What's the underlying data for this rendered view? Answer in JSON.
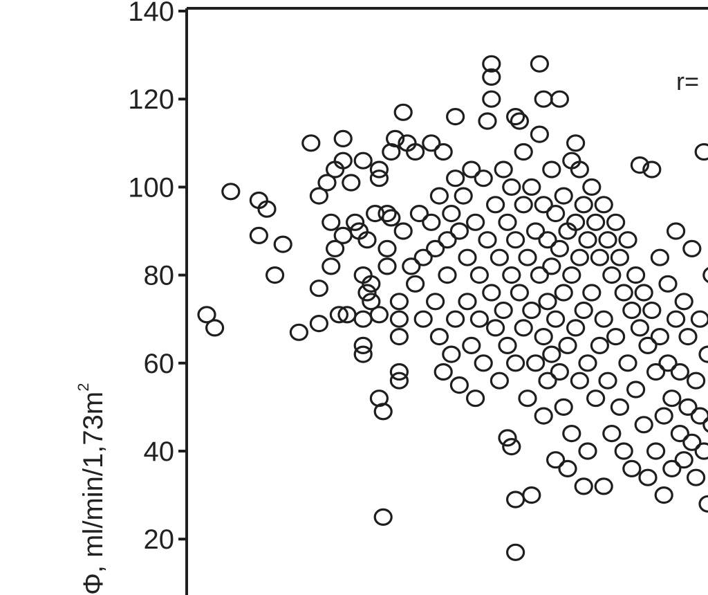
{
  "chart_data": {
    "type": "scatter",
    "title": "",
    "xlabel": "",
    "ylabel": "Φ, ml/min/1,73m",
    "ylabel_superscript": "2",
    "ylim": [
      0,
      140
    ],
    "yticks": [
      "140",
      "120",
      "100",
      "80",
      "60",
      "40",
      "20"
    ],
    "grid": false,
    "annotation": "r=",
    "marker": "open-circle",
    "marker_color": "#1e1e1e",
    "series": [
      {
        "points": [
          [
            0.05,
            71
          ],
          [
            0.07,
            68
          ],
          [
            0.11,
            99
          ],
          [
            0.18,
            97
          ],
          [
            0.2,
            95
          ],
          [
            0.18,
            89
          ],
          [
            0.24,
            87
          ],
          [
            0.22,
            80
          ],
          [
            0.28,
            67
          ],
          [
            0.31,
            110
          ],
          [
            0.33,
            98
          ],
          [
            0.33,
            77
          ],
          [
            0.33,
            69
          ],
          [
            0.35,
            101
          ],
          [
            0.36,
            92
          ],
          [
            0.36,
            82
          ],
          [
            0.37,
            86
          ],
          [
            0.37,
            104
          ],
          [
            0.38,
            71
          ],
          [
            0.39,
            111
          ],
          [
            0.39,
            106
          ],
          [
            0.39,
            89
          ],
          [
            0.4,
            71
          ],
          [
            0.41,
            101
          ],
          [
            0.42,
            92
          ],
          [
            0.43,
            90
          ],
          [
            0.44,
            106
          ],
          [
            0.44,
            80
          ],
          [
            0.44,
            70
          ],
          [
            0.44,
            64
          ],
          [
            0.44,
            62
          ],
          [
            0.45,
            88
          ],
          [
            0.45,
            76
          ],
          [
            0.46,
            78
          ],
          [
            0.46,
            74
          ],
          [
            0.47,
            94
          ],
          [
            0.48,
            104
          ],
          [
            0.48,
            102
          ],
          [
            0.48,
            71
          ],
          [
            0.48,
            52
          ],
          [
            0.49,
            49
          ],
          [
            0.49,
            25
          ],
          [
            0.5,
            94
          ],
          [
            0.5,
            86
          ],
          [
            0.5,
            82
          ],
          [
            0.51,
            108
          ],
          [
            0.51,
            93
          ],
          [
            0.52,
            111
          ],
          [
            0.53,
            74
          ],
          [
            0.53,
            70
          ],
          [
            0.53,
            66
          ],
          [
            0.53,
            58
          ],
          [
            0.53,
            56
          ],
          [
            0.54,
            117
          ],
          [
            0.54,
            90
          ],
          [
            0.55,
            110
          ],
          [
            0.56,
            82
          ],
          [
            0.57,
            108
          ],
          [
            0.57,
            78
          ],
          [
            0.58,
            94
          ],
          [
            0.59,
            84
          ],
          [
            0.59,
            70
          ],
          [
            0.61,
            110
          ],
          [
            0.61,
            92
          ],
          [
            0.62,
            86
          ],
          [
            0.62,
            74
          ],
          [
            0.63,
            98
          ],
          [
            0.63,
            66
          ],
          [
            0.64,
            108
          ],
          [
            0.64,
            58
          ],
          [
            0.65,
            88
          ],
          [
            0.65,
            80
          ],
          [
            0.66,
            94
          ],
          [
            0.66,
            62
          ],
          [
            0.67,
            116
          ],
          [
            0.67,
            102
          ],
          [
            0.67,
            70
          ],
          [
            0.68,
            90
          ],
          [
            0.68,
            55
          ],
          [
            0.69,
            98
          ],
          [
            0.7,
            84
          ],
          [
            0.7,
            74
          ],
          [
            0.71,
            104
          ],
          [
            0.71,
            64
          ],
          [
            0.72,
            92
          ],
          [
            0.72,
            52
          ],
          [
            0.73,
            80
          ],
          [
            0.73,
            70
          ],
          [
            0.74,
            102
          ],
          [
            0.74,
            60
          ],
          [
            0.75,
            115
          ],
          [
            0.75,
            88
          ],
          [
            0.76,
            76
          ],
          [
            0.76,
            128
          ],
          [
            0.76,
            125
          ],
          [
            0.76,
            120
          ],
          [
            0.77,
            96
          ],
          [
            0.77,
            68
          ],
          [
            0.78,
            84
          ],
          [
            0.78,
            56
          ],
          [
            0.79,
            104
          ],
          [
            0.79,
            72
          ],
          [
            0.8,
            92
          ],
          [
            0.8,
            64
          ],
          [
            0.8,
            43
          ],
          [
            0.81,
            100
          ],
          [
            0.81,
            80
          ],
          [
            0.81,
            41
          ],
          [
            0.82,
            88
          ],
          [
            0.82,
            116
          ],
          [
            0.82,
            60
          ],
          [
            0.82,
            29
          ],
          [
            0.82,
            17
          ],
          [
            0.83,
            115
          ],
          [
            0.83,
            76
          ],
          [
            0.84,
            108
          ],
          [
            0.84,
            96
          ],
          [
            0.84,
            68
          ],
          [
            0.85,
            84
          ],
          [
            0.85,
            52
          ],
          [
            0.86,
            100
          ],
          [
            0.86,
            72
          ],
          [
            0.86,
            30
          ],
          [
            0.87,
            90
          ],
          [
            0.87,
            60
          ],
          [
            0.88,
            112
          ],
          [
            0.88,
            80
          ],
          [
            0.88,
            128
          ],
          [
            0.89,
            96
          ],
          [
            0.89,
            120
          ],
          [
            0.89,
            66
          ],
          [
            0.89,
            48
          ],
          [
            0.9,
            88
          ],
          [
            0.9,
            74
          ],
          [
            0.9,
            56
          ],
          [
            0.91,
            104
          ],
          [
            0.91,
            82
          ],
          [
            0.91,
            62
          ],
          [
            0.92,
            94
          ],
          [
            0.92,
            70
          ],
          [
            0.92,
            38
          ],
          [
            0.93,
            86
          ],
          [
            0.93,
            58
          ],
          [
            0.93,
            120
          ],
          [
            0.94,
            98
          ],
          [
            0.94,
            76
          ],
          [
            0.94,
            50
          ],
          [
            0.95,
            90
          ],
          [
            0.95,
            64
          ],
          [
            0.95,
            36
          ],
          [
            0.96,
            106
          ],
          [
            0.96,
            80
          ],
          [
            0.96,
            44
          ],
          [
            0.97,
            92
          ],
          [
            0.97,
            68
          ],
          [
            0.97,
            110
          ],
          [
            0.98,
            84
          ],
          [
            0.98,
            56
          ],
          [
            0.98,
            104
          ],
          [
            0.99,
            96
          ],
          [
            0.99,
            72
          ],
          [
            0.99,
            32
          ],
          [
            1.0,
            88
          ],
          [
            1.0,
            60
          ],
          [
            1.0,
            40
          ],
          [
            1.01,
            100
          ],
          [
            1.01,
            76
          ],
          [
            1.02,
            92
          ],
          [
            1.02,
            52
          ],
          [
            1.03,
            84
          ],
          [
            1.03,
            64
          ],
          [
            1.04,
            96
          ],
          [
            1.04,
            70
          ],
          [
            1.04,
            32
          ],
          [
            1.05,
            88
          ],
          [
            1.05,
            56
          ],
          [
            1.06,
            80
          ],
          [
            1.06,
            44
          ],
          [
            1.07,
            92
          ],
          [
            1.07,
            66
          ],
          [
            1.08,
            84
          ],
          [
            1.08,
            50
          ],
          [
            1.09,
            76
          ],
          [
            1.09,
            40
          ],
          [
            1.1,
            88
          ],
          [
            1.1,
            60
          ],
          [
            1.11,
            72
          ],
          [
            1.11,
            36
          ],
          [
            1.12,
            80
          ],
          [
            1.12,
            54
          ],
          [
            1.13,
            68
          ],
          [
            1.13,
            105
          ],
          [
            1.14,
            76
          ],
          [
            1.14,
            46
          ],
          [
            1.15,
            64
          ],
          [
            1.15,
            34
          ],
          [
            1.16,
            72
          ],
          [
            1.16,
            104
          ],
          [
            1.17,
            58
          ],
          [
            1.17,
            40
          ],
          [
            1.18,
            66
          ],
          [
            1.18,
            84
          ],
          [
            1.19,
            48
          ],
          [
            1.19,
            30
          ],
          [
            1.2,
            60
          ],
          [
            1.2,
            78
          ],
          [
            1.21,
            52
          ],
          [
            1.21,
            36
          ],
          [
            1.22,
            70
          ],
          [
            1.22,
            90
          ],
          [
            1.23,
            44
          ],
          [
            1.23,
            58
          ],
          [
            1.24,
            38
          ],
          [
            1.24,
            74
          ],
          [
            1.25,
            50
          ],
          [
            1.25,
            66
          ],
          [
            1.26,
            42
          ],
          [
            1.26,
            86
          ],
          [
            1.27,
            56
          ],
          [
            1.27,
            34
          ],
          [
            1.28,
            48
          ],
          [
            1.28,
            70
          ],
          [
            1.29,
            40
          ],
          [
            1.29,
            108
          ],
          [
            1.3,
            62
          ],
          [
            1.3,
            28
          ],
          [
            1.31,
            46
          ],
          [
            1.31,
            80
          ],
          [
            1.32,
            54
          ]
        ]
      }
    ]
  }
}
